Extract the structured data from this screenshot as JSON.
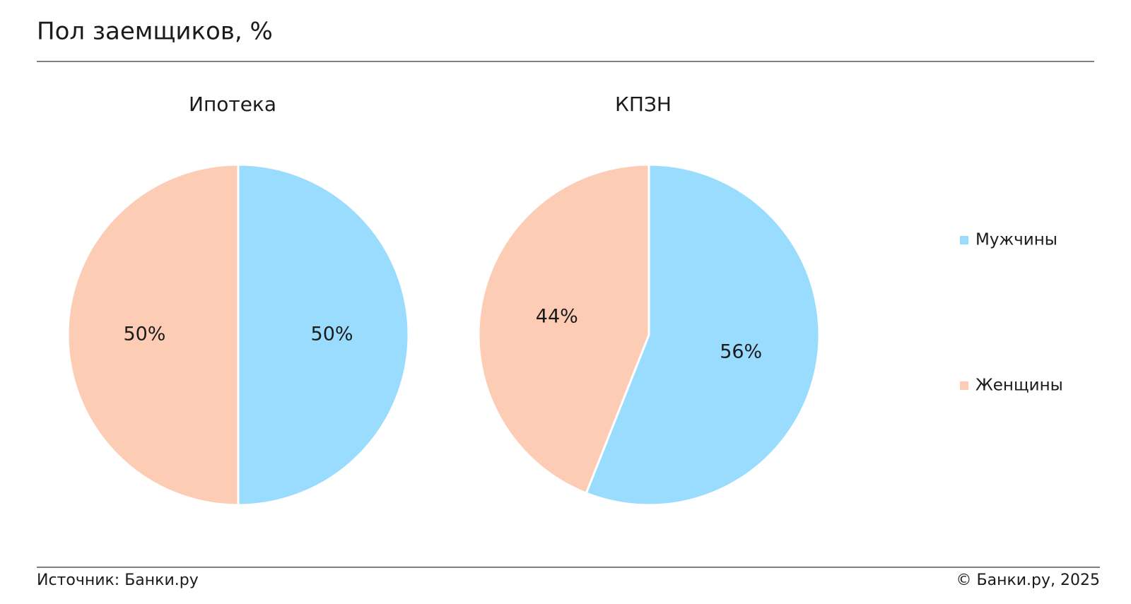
{
  "title": "Пол заемщиков, %",
  "legend": {
    "labels": [
      "Мужчины",
      "Женщины"
    ],
    "colors": [
      "#9adcfd",
      "#fdccb5"
    ]
  },
  "chart_data": [
    {
      "type": "pie",
      "title": "Ипотека",
      "values": [
        50,
        50
      ],
      "value_labels": [
        "50%",
        "50%"
      ]
    },
    {
      "type": "pie",
      "title": "КПЗН",
      "values": [
        56,
        44
      ],
      "value_labels": [
        "56%",
        "44%"
      ]
    }
  ],
  "source": "Источник: Банки.ру",
  "copyright": "© Банки.ру, 2025"
}
